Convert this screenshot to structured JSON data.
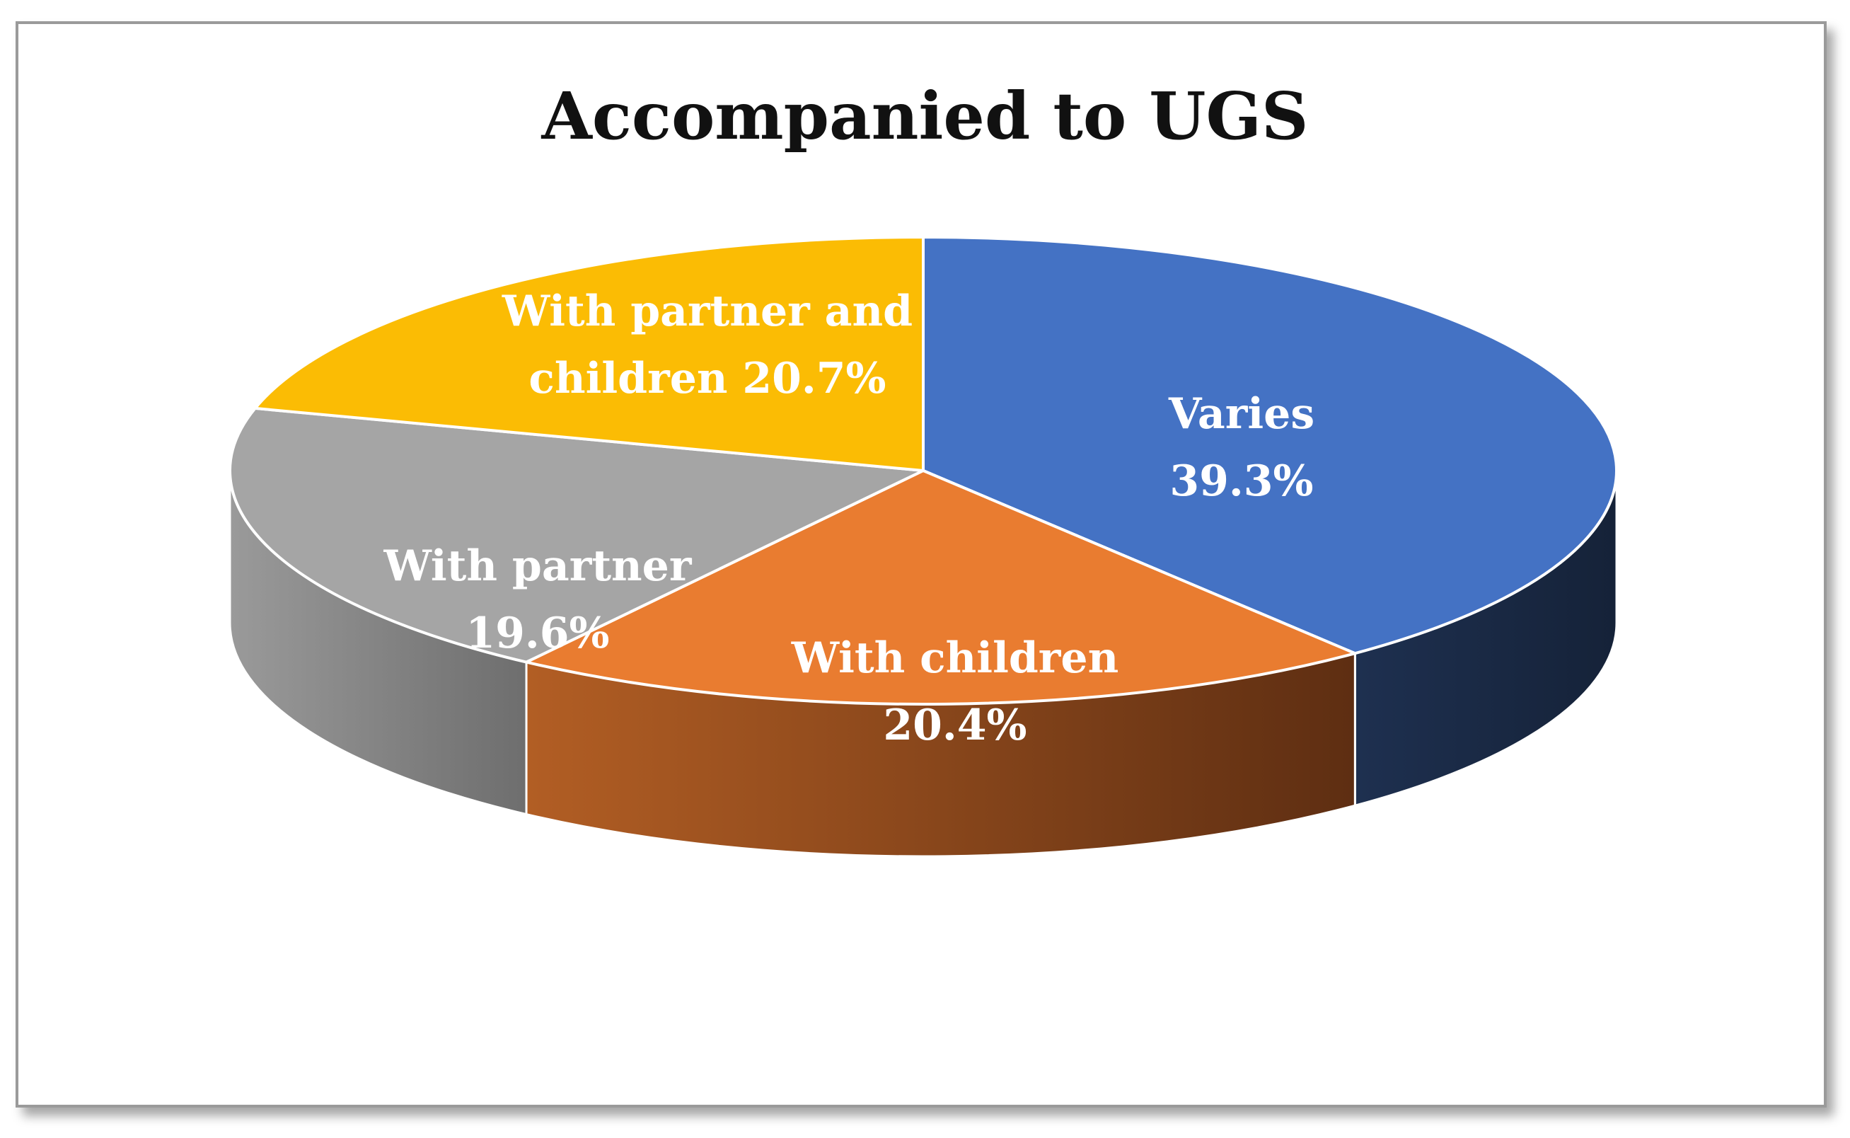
{
  "chart_data": {
    "type": "pie",
    "title": "Accompanied to UGS",
    "slices": [
      {
        "label": "Varies",
        "value": 39.3,
        "value_text": "39.3%",
        "color": "#4472C4",
        "side_color": "#1B2A4A"
      },
      {
        "label": "With children",
        "value": 20.4,
        "value_text": "20.4%",
        "color": "#E97C30",
        "side_color": "#8A4518"
      },
      {
        "label": "With partner",
        "value": 19.6,
        "value_text": "19.6%",
        "color": "#A5A5A5",
        "side_color": "#7A7A7A"
      },
      {
        "label": "With partner and children",
        "value": 20.7,
        "value_text": "20.7%",
        "color": "#FBBC04",
        "side_color": "#B58500"
      }
    ],
    "style": "3d-pie",
    "legend": "none"
  }
}
